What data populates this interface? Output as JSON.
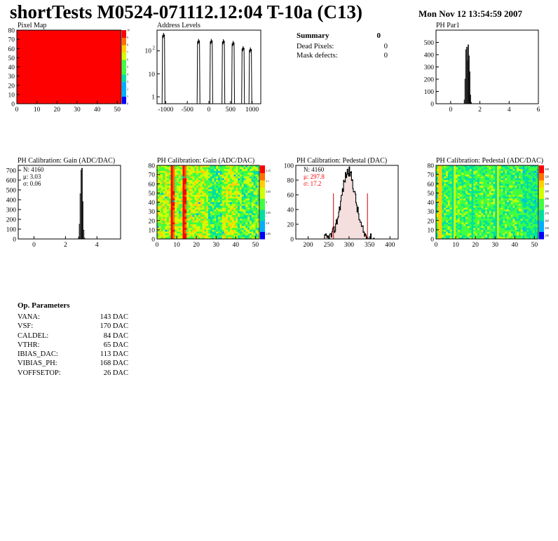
{
  "title": "shortTests M0524-071112.12:04 T-10a (C13)",
  "date": "Mon Nov 12 13:54:59 2007",
  "summary": {
    "heading": "Summary",
    "total": "0",
    "rows": [
      {
        "label": "Dead Pixels:",
        "value": "0"
      },
      {
        "label": "Mask defects:",
        "value": "0"
      }
    ]
  },
  "op_params": {
    "heading": "Op. Parameters",
    "rows": [
      {
        "name": "VANA:",
        "value": "143 DAC"
      },
      {
        "name": "VSF:",
        "value": "170 DAC"
      },
      {
        "name": "CALDEL:",
        "value": "84 DAC"
      },
      {
        "name": "VTHR:",
        "value": "65 DAC"
      },
      {
        "name": "IBIAS_DAC:",
        "value": "113 DAC"
      },
      {
        "name": "VIBIAS_PH:",
        "value": "168 DAC"
      },
      {
        "name": "VOFFSETOP:",
        "value": "26 DAC"
      }
    ]
  },
  "chart_data": [
    {
      "id": "pixel_map",
      "type": "heatmap",
      "title": "Pixel Map",
      "xlim": [
        0,
        52
      ],
      "ylim": [
        0,
        80
      ],
      "xticks": [
        0,
        10,
        20,
        30,
        40,
        50
      ],
      "yticks": [
        0,
        10,
        20,
        30,
        40,
        50,
        60,
        70,
        80
      ],
      "value": 10,
      "color": "#ff0000",
      "zticks": [
        0,
        1,
        2,
        3,
        4,
        5,
        6,
        7,
        8,
        9,
        10
      ]
    },
    {
      "id": "address_levels",
      "type": "bar",
      "title": "Address Levels",
      "xlim": [
        -1200,
        1200
      ],
      "ylim": [
        0.5,
        800
      ],
      "ylog": true,
      "xticks": [
        -1000,
        -500,
        0,
        500,
        1000
      ],
      "yticks": [
        {
          "v": 1,
          "label": "1"
        },
        {
          "v": 10,
          "label": "10"
        },
        {
          "v": 100,
          "label": "10^2"
        }
      ],
      "peaks": [
        {
          "x": -1050,
          "h": 600
        },
        {
          "x": -240,
          "h": 330
        },
        {
          "x": 55,
          "h": 330
        },
        {
          "x": 335,
          "h": 320
        },
        {
          "x": 560,
          "h": 270
        },
        {
          "x": 790,
          "h": 160
        },
        {
          "x": 960,
          "h": 140
        }
      ]
    },
    {
      "id": "ph_par1",
      "type": "bar",
      "title": "PH Par1",
      "xlim": [
        -1,
        6
      ],
      "ylim": [
        0,
        600
      ],
      "xticks": [
        0,
        2,
        4,
        6
      ],
      "yticks": [
        0,
        100,
        200,
        300,
        400,
        500
      ],
      "x": [
        0.95,
        1.0,
        1.05,
        1.1,
        1.15,
        1.2,
        1.25,
        1.3,
        1.35,
        1.4
      ],
      "values": [
        30,
        200,
        440,
        460,
        350,
        480,
        390,
        260,
        70,
        10
      ]
    },
    {
      "id": "ph_gain_hist",
      "type": "bar",
      "title": "PH Calibration: Gain (ADC/DAC)",
      "xlim": [
        -1,
        5.5
      ],
      "ylim": [
        0,
        750
      ],
      "xticks": [
        0,
        2,
        4
      ],
      "yticks": [
        0,
        100,
        200,
        300,
        400,
        500,
        600,
        700
      ],
      "stats": [
        "N: 4160",
        "μ: 3.03",
        "σ: 0.06"
      ],
      "x": [
        2.85,
        2.9,
        2.95,
        3.0,
        3.05,
        3.1,
        3.15,
        3.2
      ],
      "values": [
        20,
        150,
        460,
        700,
        720,
        380,
        90,
        10
      ]
    },
    {
      "id": "ph_gain_map",
      "type": "heatmap",
      "title": "PH Calibration: Gain (ADC/DAC)",
      "xlim": [
        0,
        52
      ],
      "ylim": [
        0,
        80
      ],
      "xticks": [
        0,
        10,
        20,
        30,
        40,
        50
      ],
      "yticks": [
        0,
        10,
        20,
        30,
        40,
        50,
        60,
        70,
        80
      ],
      "zticks": [
        "2.85",
        "2.9",
        "2.95",
        "3",
        "3.05",
        "3.1",
        "3.15"
      ]
    },
    {
      "id": "ph_pedestal_hist",
      "type": "bar",
      "title": "PH Calibration: Pedestal (DAC)",
      "xlim": [
        170,
        420
      ],
      "ylim": [
        0,
        100
      ],
      "xticks": [
        200,
        250,
        300,
        350,
        400
      ],
      "yticks": [
        0,
        20,
        40,
        60,
        80,
        100
      ],
      "stats": [
        "N: 4160",
        "μ: 297.8",
        "σ: 17.2"
      ],
      "stats_color": [
        "#000000",
        "#ff0000",
        "#ff0000"
      ],
      "markers": [
        262,
        345
      ],
      "mean": 297.8,
      "sigma": 17.2,
      "peak": 92
    },
    {
      "id": "ph_pedestal_map",
      "type": "heatmap",
      "title": "PH Calibration: Pedestal (ADC/DAC)",
      "xlim": [
        0,
        52
      ],
      "ylim": [
        0,
        80
      ],
      "xticks": [
        0,
        10,
        20,
        30,
        40,
        50
      ],
      "yticks": [
        0,
        10,
        20,
        30,
        40,
        50,
        60,
        70,
        80
      ],
      "zticks": [
        "240",
        "250",
        "260",
        "270",
        "280",
        "290",
        "300",
        "310",
        "320",
        "330"
      ]
    }
  ]
}
